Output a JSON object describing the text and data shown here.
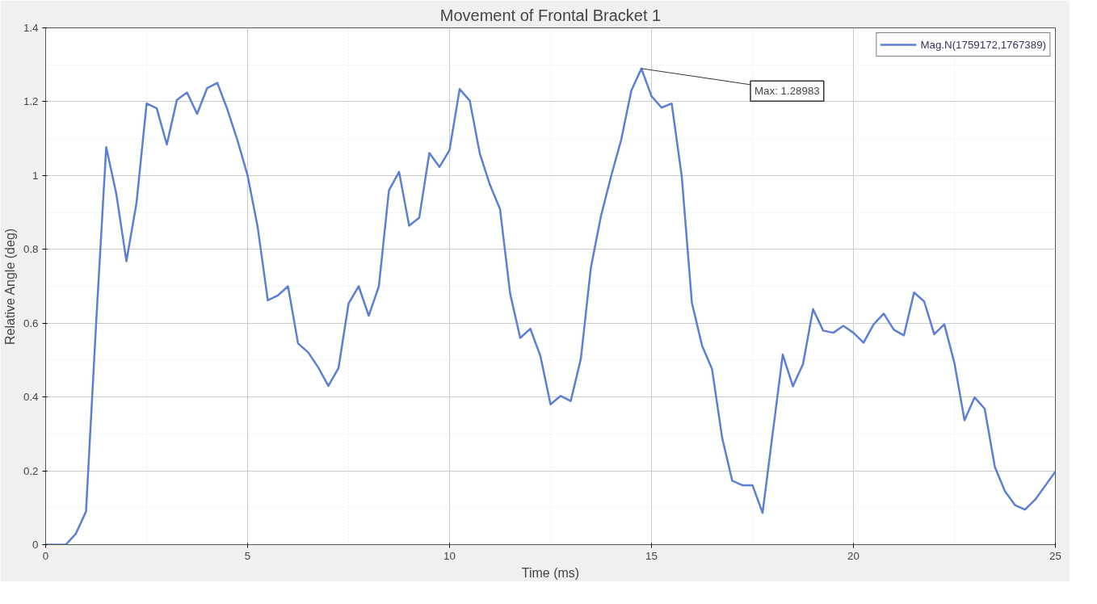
{
  "chart_data": {
    "type": "line",
    "title": "Movement of Frontal Bracket 1",
    "xlabel": "Time (ms)",
    "ylabel": "Relative Angle (deg)",
    "x": [
      0,
      0.25,
      0.5,
      0.75,
      1,
      1.25,
      1.5,
      1.75,
      2,
      2.25,
      2.5,
      2.75,
      3,
      3.25,
      3.5,
      3.75,
      4,
      4.25,
      4.5,
      4.75,
      5,
      5.25,
      5.5,
      5.75,
      6,
      6.25,
      6.5,
      6.75,
      7,
      7.25,
      7.5,
      7.75,
      8,
      8.25,
      8.5,
      8.75,
      9,
      9.25,
      9.5,
      9.75,
      10,
      10.25,
      10.5,
      10.75,
      11,
      11.25,
      11.5,
      11.75,
      12,
      12.25,
      12.5,
      12.75,
      13,
      13.25,
      13.5,
      13.75,
      14,
      14.25,
      14.5,
      14.75,
      15,
      15.25,
      15.5,
      15.75,
      16,
      16.25,
      16.5,
      16.75,
      17,
      17.25,
      17.5,
      17.75,
      18,
      18.25,
      18.5,
      18.75,
      19,
      19.25,
      19.5,
      19.75,
      20,
      20.25,
      20.5,
      20.75,
      21,
      21.25,
      21.5,
      21.75,
      22,
      22.25,
      22.5,
      22.75,
      23,
      23.25,
      23.5,
      23.75,
      24,
      24.25,
      24.5,
      24.75,
      25
    ],
    "series": [
      {
        "name": "Mag.N(1759172,1767389)",
        "color": "#5b7fd4",
        "values": [
          0,
          0,
          0,
          0.03,
          0.09,
          0.6,
          1.077,
          0.95,
          0.768,
          0.926,
          1.195,
          1.182,
          1.084,
          1.205,
          1.225,
          1.167,
          1.237,
          1.251,
          1.179,
          1.095,
          1.0,
          0.86,
          0.662,
          0.675,
          0.7,
          0.545,
          0.521,
          0.48,
          0.43,
          0.478,
          0.653,
          0.7,
          0.62,
          0.7,
          0.96,
          1.01,
          0.864,
          0.886,
          1.061,
          1.023,
          1.069,
          1.234,
          1.203,
          1.059,
          0.975,
          0.909,
          0.68,
          0.56,
          0.585,
          0.511,
          0.38,
          0.403,
          0.389,
          0.503,
          0.751,
          0.891,
          0.998,
          1.097,
          1.23,
          1.28983,
          1.215,
          1.184,
          1.195,
          0.997,
          0.655,
          0.54,
          0.475,
          0.289,
          0.173,
          0.161,
          0.161,
          0.086,
          0.301,
          0.515,
          0.429,
          0.489,
          0.638,
          0.58,
          0.574,
          0.593,
          0.574,
          0.547,
          0.597,
          0.626,
          0.582,
          0.567,
          0.683,
          0.659,
          0.57,
          0.597,
          0.492,
          0.337,
          0.399,
          0.368,
          0.211,
          0.145,
          0.107,
          0.095,
          0.122,
          0.16,
          0.198
        ]
      }
    ],
    "annotations": [
      {
        "text": "Max: 1.28983",
        "x": 14.75,
        "y": 1.28983
      }
    ],
    "xlim": [
      0,
      25
    ],
    "xticks": [
      0,
      5,
      10,
      15,
      20,
      25
    ],
    "ylim": [
      0,
      1.4
    ],
    "yticks": [
      0,
      0.2,
      0.4,
      0.6,
      0.8,
      1,
      1.2,
      1.4
    ],
    "grid": true,
    "legend": "top right",
    "marker": "none",
    "line_style": "solid"
  }
}
